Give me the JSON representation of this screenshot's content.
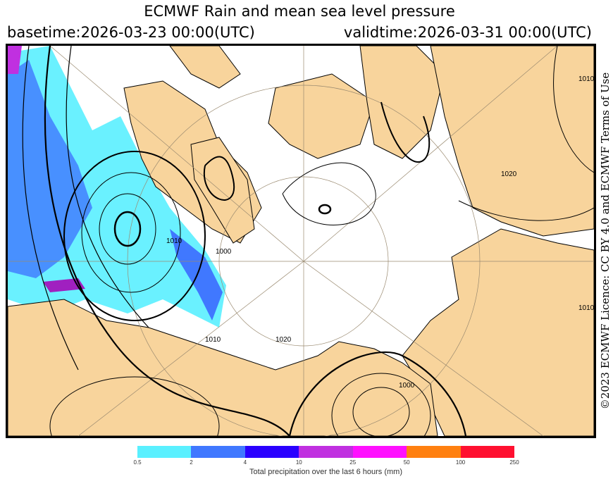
{
  "title": "ECMWF Rain and mean sea level pressure",
  "basetime": "basetime:2026-03-23 00:00(UTC)",
  "validtime": "validtime:2026-03-31 00:00(UTC)",
  "licence": "©2023 ECMWF Licence: CC BY 4.0 and ECMWF Terms of Use",
  "colors": {
    "land": "#f8d49c",
    "ocean": "#ffffff",
    "isobar": "#000000"
  },
  "colorbar": {
    "title": "Total precipitation over the last 6 hours (mm)",
    "ticks": [
      "0.5",
      "2",
      "4",
      "10",
      "25",
      "50",
      "100",
      "250"
    ],
    "colors": [
      "#5af0ff",
      "#4078ff",
      "#2a00ff",
      "#c030e0",
      "#ff10ff",
      "#ff8010",
      "#ff1030"
    ]
  },
  "contour_labels": [
    "1020",
    "1010",
    "1000",
    "1010",
    "1020",
    "1000",
    "1010",
    "1010"
  ]
}
